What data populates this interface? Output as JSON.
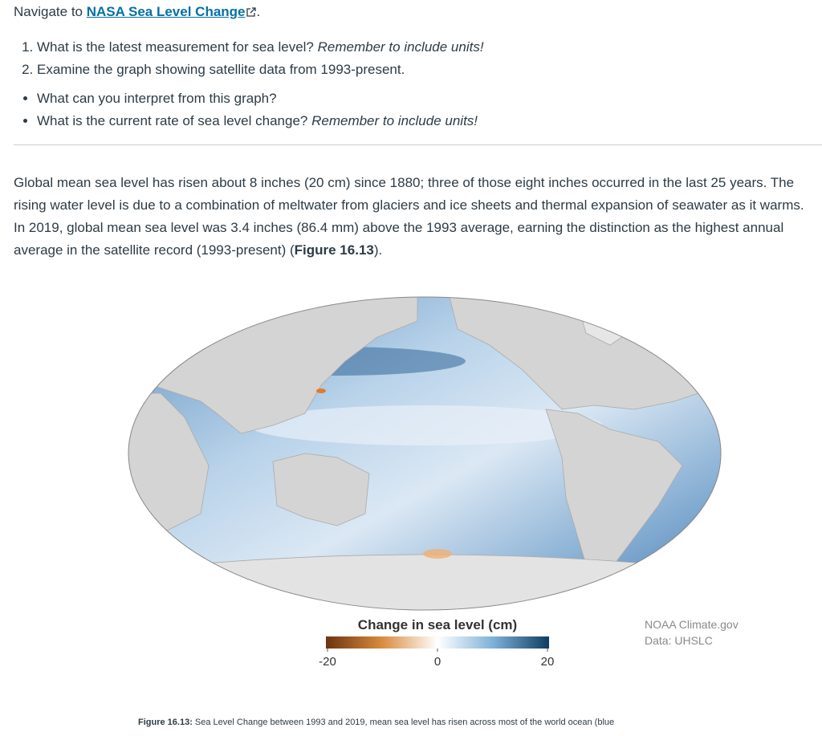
{
  "intro": {
    "prefix": "Navigate to",
    "link": "NASA Sea Level Change",
    "suffix": "."
  },
  "questions": [
    {
      "text": "What is the latest measurement for sea level?",
      "emphasis": "Remember to include units!"
    },
    {
      "text": "Examine the graph showing satellite data from 1993-present."
    }
  ],
  "bullets": [
    {
      "text": "What can you interpret from this graph?"
    },
    {
      "text": "What is the current rate of sea level change?",
      "emphasis": "Remember to include units!"
    }
  ],
  "paragraph": {
    "text": "Global mean sea level has risen about 8 inches (20 cm) since 1880; three of those eight inches occurred in the last 25 years. The rising water level is due to a combination of meltwater from glaciers and ice sheets and thermal expansion of seawater as it warms. In 2019, global mean sea level was 3.4 inches (86.4 mm) above the 1993 average, earning the distinction as the highest annual average in the satellite record (1993-present) (",
    "figure_ref": "Figure 16.13",
    "end": ")."
  },
  "figure": {
    "legend_title": "Change in sea level (cm)",
    "scale_ticks": [
      -20,
      0,
      20
    ],
    "credit": "NOAA Climate.gov",
    "source": "Data: UHSLC",
    "caption_label": "Figure 16.13:",
    "caption": "Sea Level Change between 1993 and 2019, mean sea level has risen across most of the world ocean (blue"
  }
}
